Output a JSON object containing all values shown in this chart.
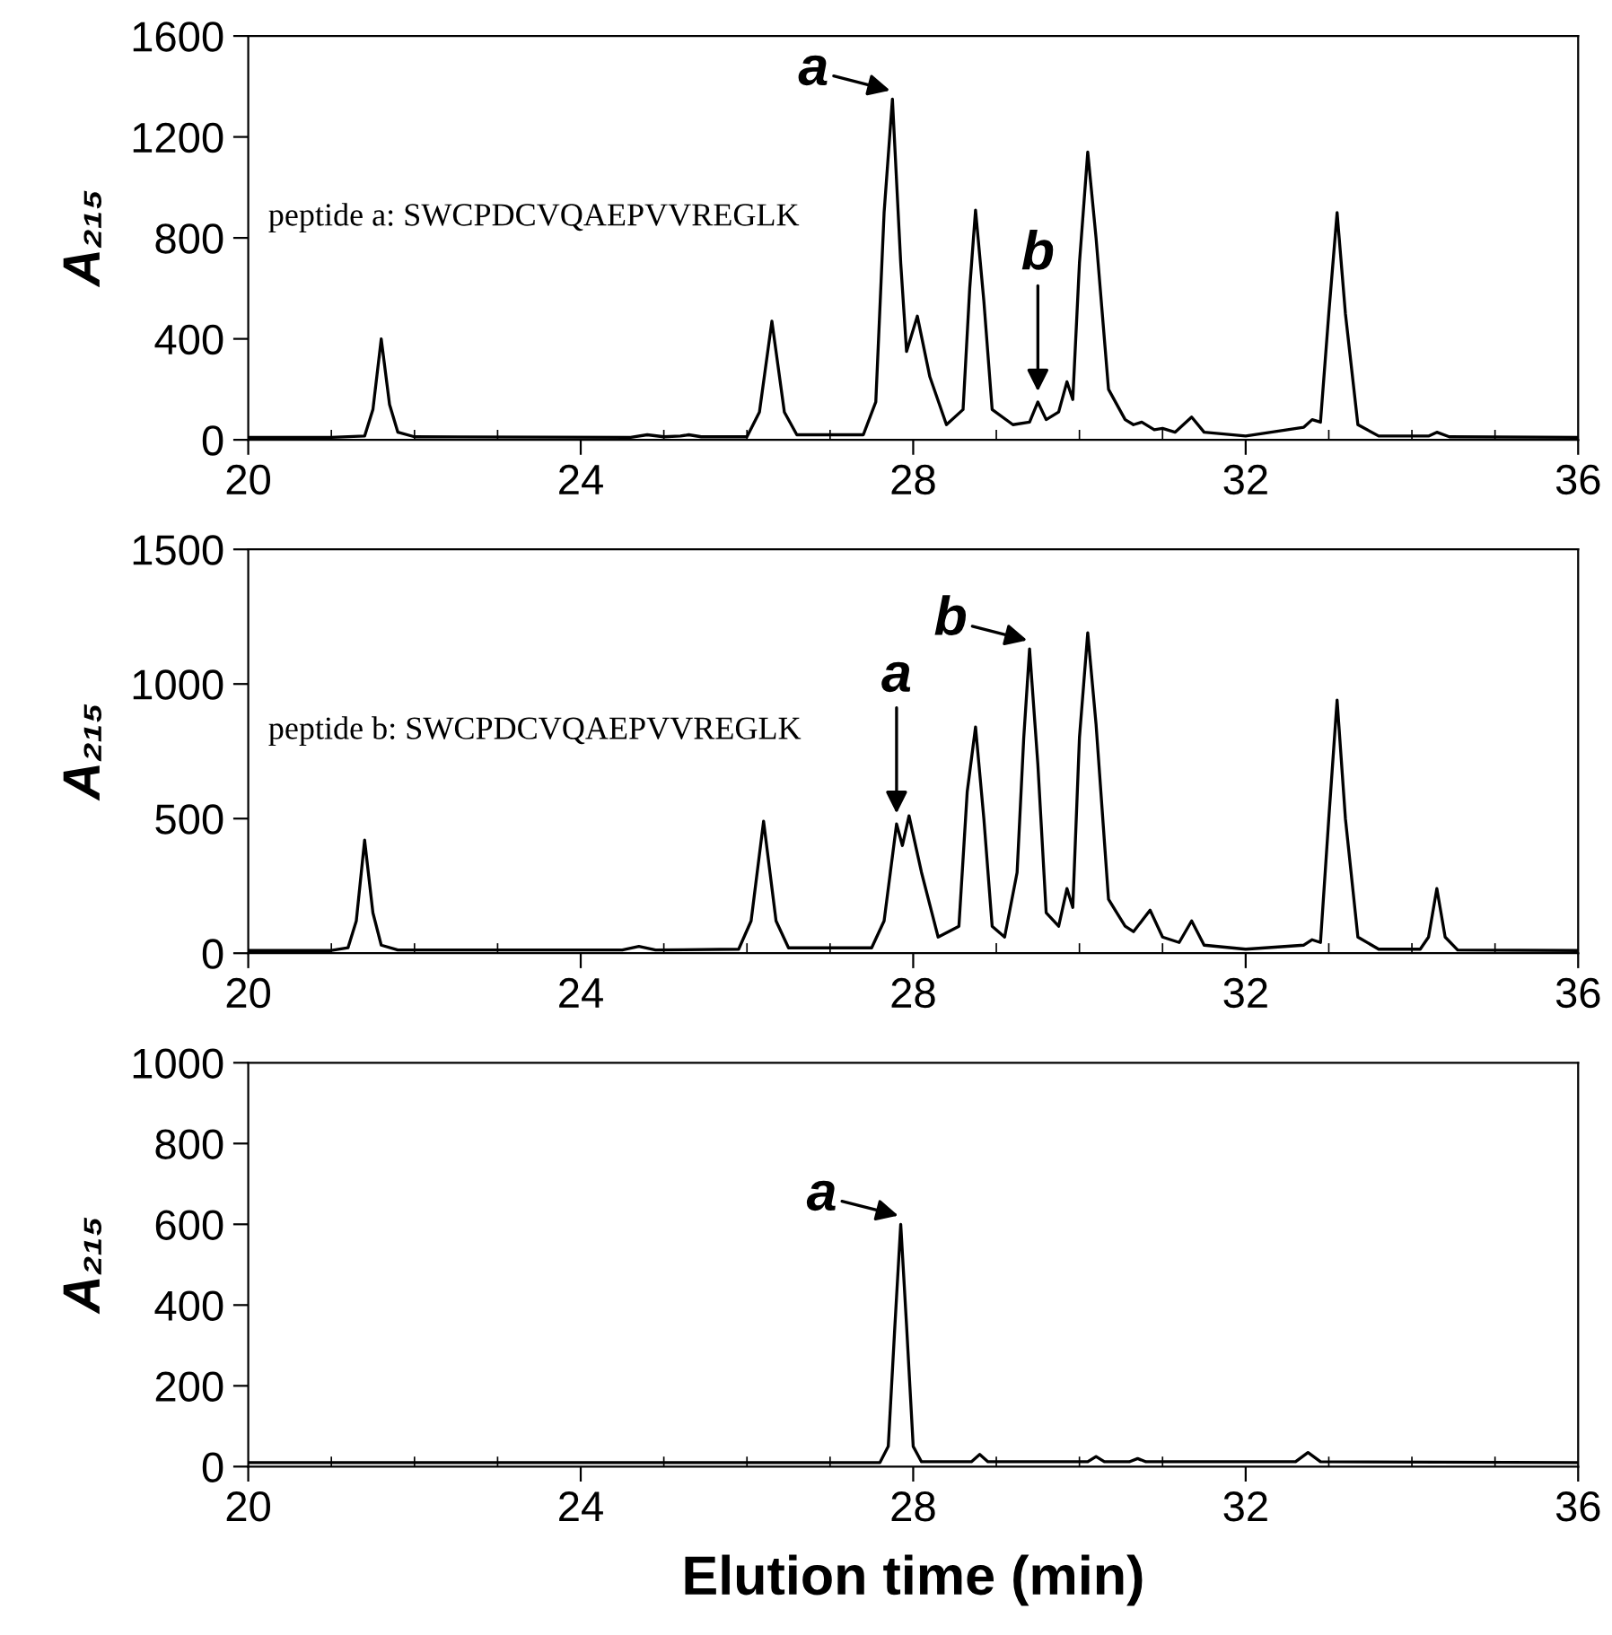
{
  "chart_data": [
    {
      "type": "line",
      "ylabel": "A₂₁₅",
      "xlim": [
        20,
        36
      ],
      "xticks": [
        20,
        24,
        28,
        32,
        36
      ],
      "ylim": [
        0,
        1600
      ],
      "yticks": [
        0,
        400,
        800,
        1200,
        1600
      ],
      "grid": false,
      "legend": false,
      "annotations": [
        "peptide a: SWCPDCVQAEPVVREGLK",
        {
          "text": "a",
          "x": 27.75,
          "y": 1350
        },
        {
          "text": "b",
          "x": 29.5,
          "y": 150
        }
      ],
      "series": [
        {
          "color": "#000000",
          "x": [
            20,
            21,
            21.4,
            21.5,
            21.6,
            21.7,
            21.8,
            22,
            24.6,
            24.8,
            25,
            25.2,
            25.3,
            25.45,
            26,
            26.15,
            26.3,
            26.45,
            26.6,
            27.4,
            27.55,
            27.65,
            27.75,
            27.85,
            27.92,
            28.05,
            28.2,
            28.4,
            28.6,
            28.68,
            28.75,
            28.85,
            28.95,
            29.2,
            29.4,
            29.5,
            29.6,
            29.75,
            29.85,
            29.92,
            30.0,
            30.1,
            30.2,
            30.35,
            30.55,
            30.65,
            30.75,
            30.9,
            31.0,
            31.15,
            31.35,
            31.5,
            32.0,
            32.7,
            32.8,
            32.9,
            33.0,
            33.1,
            33.2,
            33.35,
            33.6,
            34.2,
            34.3,
            34.45,
            36
          ],
          "values": [
            10,
            10,
            15,
            120,
            400,
            140,
            30,
            12,
            10,
            20,
            12,
            15,
            20,
            12,
            12,
            110,
            470,
            110,
            20,
            20,
            150,
            900,
            1350,
            700,
            350,
            490,
            250,
            60,
            120,
            600,
            910,
            550,
            120,
            60,
            70,
            150,
            80,
            110,
            230,
            160,
            700,
            1140,
            800,
            200,
            80,
            60,
            70,
            40,
            45,
            30,
            90,
            30,
            15,
            50,
            80,
            70,
            500,
            900,
            500,
            60,
            15,
            15,
            30,
            12,
            10
          ]
        }
      ]
    },
    {
      "type": "line",
      "ylabel": "A₂₁₅",
      "xlim": [
        20,
        36
      ],
      "xticks": [
        20,
        24,
        28,
        32,
        36
      ],
      "ylim": [
        0,
        1500
      ],
      "yticks": [
        0,
        500,
        1000,
        1500
      ],
      "grid": false,
      "legend": false,
      "annotations": [
        "peptide b: SWCPDCVQAEPVVREGLK",
        {
          "text": "a",
          "x": 27.8,
          "y": 480
        },
        {
          "text": "b",
          "x": 29.4,
          "y": 1130
        }
      ],
      "series": [
        {
          "color": "#000000",
          "x": [
            20,
            21,
            21.2,
            21.3,
            21.4,
            21.5,
            21.6,
            21.8,
            24.5,
            24.7,
            24.9,
            25.9,
            26.05,
            26.2,
            26.35,
            26.5,
            27.5,
            27.65,
            27.8,
            27.87,
            27.95,
            28.1,
            28.3,
            28.55,
            28.65,
            28.75,
            28.85,
            28.95,
            29.1,
            29.25,
            29.33,
            29.4,
            29.5,
            29.6,
            29.75,
            29.85,
            29.92,
            30.0,
            30.1,
            30.2,
            30.35,
            30.55,
            30.65,
            30.85,
            31.0,
            31.1,
            31.2,
            31.35,
            31.5,
            32.0,
            32.7,
            32.8,
            32.9,
            33.0,
            33.1,
            33.2,
            33.35,
            33.6,
            34.1,
            34.2,
            34.3,
            34.4,
            34.55,
            36
          ],
          "values": [
            10,
            10,
            20,
            120,
            420,
            150,
            30,
            12,
            12,
            25,
            12,
            15,
            120,
            490,
            120,
            20,
            20,
            120,
            480,
            400,
            510,
            300,
            60,
            100,
            600,
            840,
            500,
            100,
            60,
            300,
            800,
            1130,
            700,
            150,
            100,
            240,
            170,
            800,
            1190,
            850,
            200,
            100,
            80,
            160,
            60,
            50,
            40,
            120,
            30,
            15,
            30,
            50,
            40,
            500,
            940,
            500,
            60,
            15,
            15,
            60,
            240,
            60,
            12,
            10
          ]
        }
      ]
    },
    {
      "type": "line",
      "ylabel": "A₂₁₅",
      "xlabel": "Elution time (min)",
      "xlim": [
        20,
        36
      ],
      "xticks": [
        20,
        24,
        28,
        32,
        36
      ],
      "ylim": [
        0,
        1000
      ],
      "yticks": [
        0,
        200,
        400,
        600,
        800,
        1000
      ],
      "grid": false,
      "legend": false,
      "annotations": [
        {
          "text": "a",
          "x": 27.85,
          "y": 600
        }
      ],
      "series": [
        {
          "color": "#000000",
          "x": [
            20,
            27.6,
            27.7,
            27.78,
            27.85,
            27.92,
            28.0,
            28.1,
            28.7,
            28.8,
            28.9,
            30.1,
            30.2,
            30.3,
            30.6,
            30.7,
            30.8,
            32.6,
            32.75,
            32.9,
            36
          ],
          "values": [
            10,
            10,
            50,
            350,
            600,
            350,
            50,
            12,
            12,
            30,
            12,
            12,
            25,
            12,
            12,
            20,
            12,
            12,
            35,
            12,
            10
          ]
        }
      ]
    }
  ]
}
